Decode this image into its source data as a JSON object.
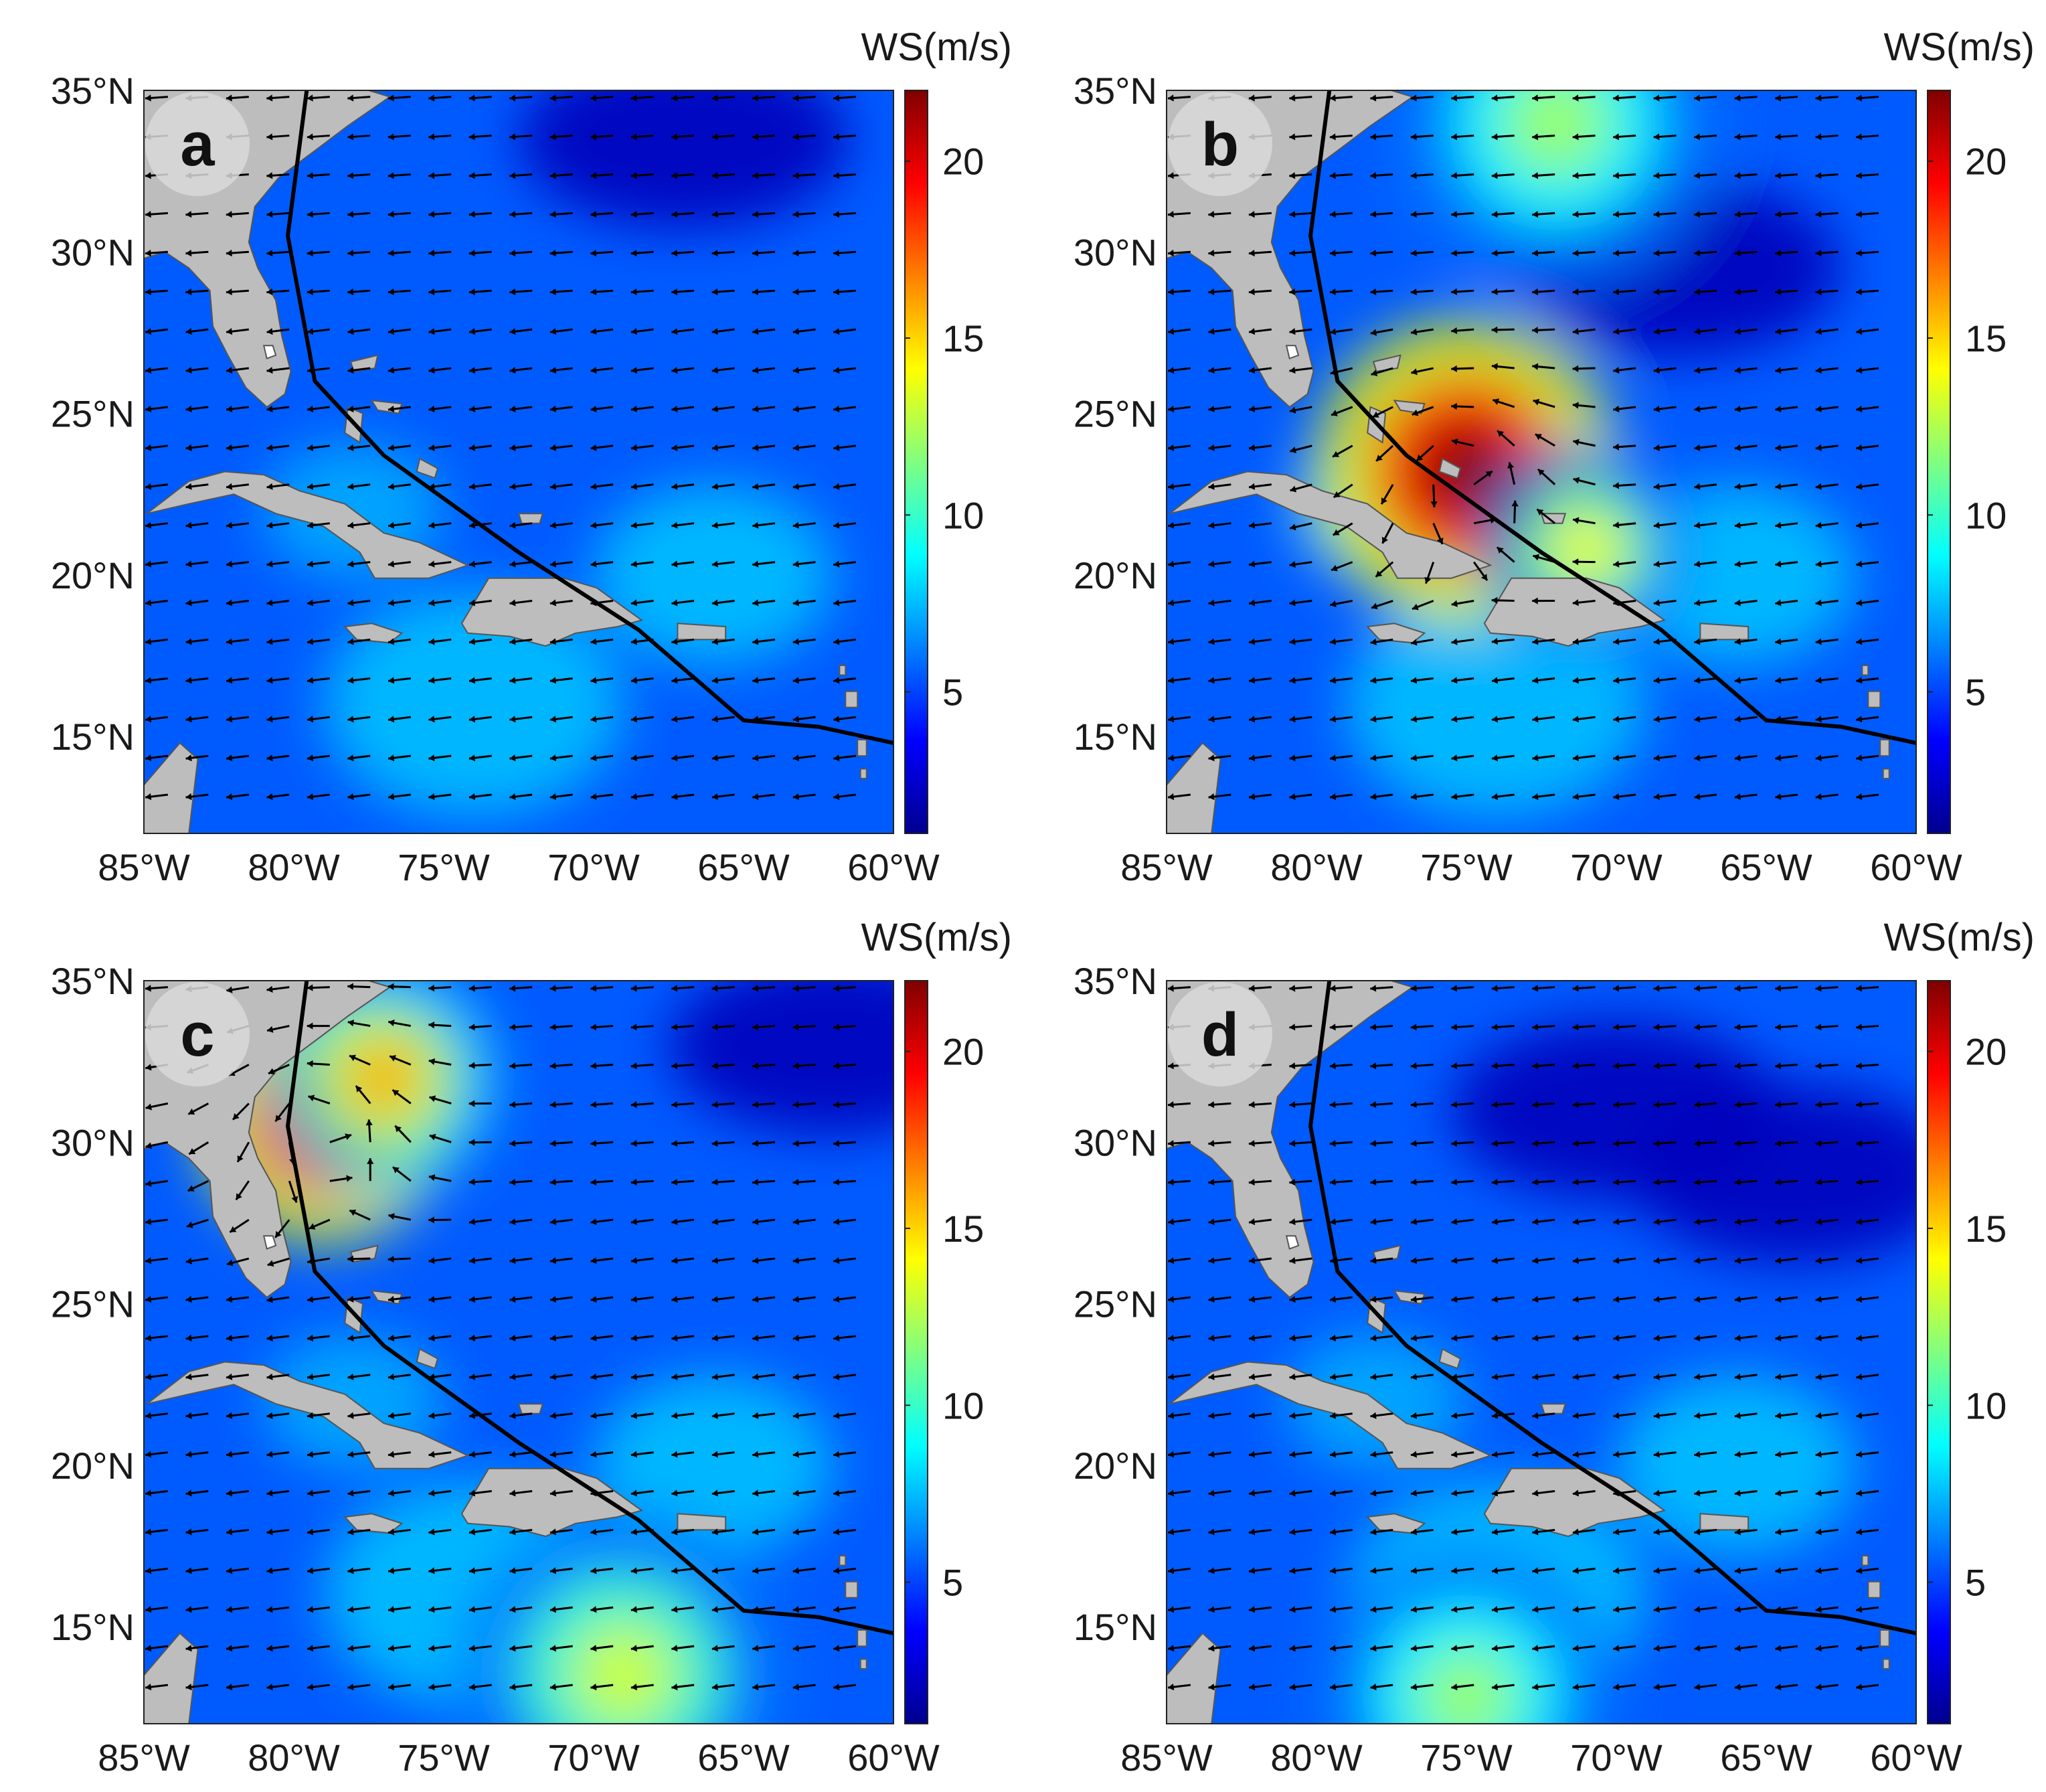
{
  "figure": {
    "colorbar": {
      "unit_label": "WS(m/s)",
      "min": 1,
      "max": 22,
      "ticks": [
        "5",
        "10",
        "15",
        "20"
      ],
      "tick_values": [
        5,
        10,
        15,
        20
      ],
      "colormap": [
        "#00008f",
        "#0000ff",
        "#0080ff",
        "#00ffff",
        "#80ff80",
        "#ffff00",
        "#ff8000",
        "#ff0000",
        "#800000"
      ]
    },
    "axes": {
      "lon_range": [
        -85,
        -60
      ],
      "lat_range": [
        12,
        35
      ],
      "lon_ticks": [
        "85°W",
        "80°W",
        "75°W",
        "70°W",
        "65°W",
        "60°W"
      ],
      "lon_values": [
        -85,
        -80,
        -75,
        -70,
        -65,
        -60
      ],
      "lat_ticks": [
        "35°N",
        "30°N",
        "25°N",
        "20°N",
        "15°N"
      ],
      "lat_values": [
        35,
        30,
        25,
        20,
        15
      ]
    },
    "colors": {
      "land": "#bdbdbd",
      "coast": "#555555",
      "track": "#000000",
      "arrow": "#000000"
    },
    "track": [
      [
        -79.5,
        35.5
      ],
      [
        -80.2,
        30.5
      ],
      [
        -79.3,
        26.0
      ],
      [
        -77.0,
        23.7
      ],
      [
        -72.5,
        20.7
      ],
      [
        -68.5,
        18.3
      ],
      [
        -65.0,
        15.5
      ],
      [
        -62.5,
        15.3
      ],
      [
        -60.0,
        14.8
      ]
    ],
    "panels": [
      {
        "letter": "a",
        "hotspots": [],
        "calm": [
          [
            -67,
            33.5
          ]
        ]
      },
      {
        "letter": "b",
        "hotspots": [
          [
            -75,
            23.2,
            22,
            3.2
          ],
          [
            -71,
            20.8,
            14,
            2.2
          ],
          [
            -72,
            34,
            12,
            3.5
          ]
        ],
        "calm": [
          [
            -68,
            29.5
          ]
        ]
      },
      {
        "letter": "c",
        "hotspots": [
          [
            -79,
            30.7,
            22,
            2.6
          ],
          [
            -77,
            32,
            16,
            2.4
          ],
          [
            -69,
            13.5,
            13,
            3.5
          ]
        ],
        "calm": [
          [
            -62,
            33
          ]
        ]
      },
      {
        "letter": "d",
        "hotspots": [
          [
            -75,
            12.8,
            12,
            3.2
          ]
        ],
        "calm": [
          [
            -70,
            31
          ],
          [
            -64,
            29
          ]
        ]
      }
    ]
  }
}
